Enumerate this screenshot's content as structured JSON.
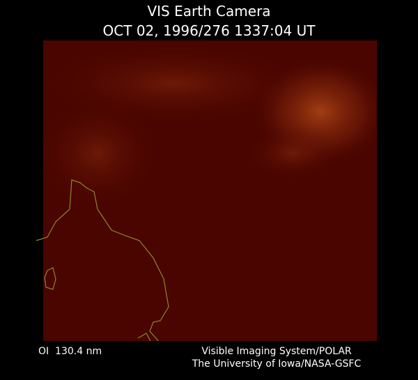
{
  "header": {
    "title": "VIS Earth Camera",
    "timestamp": "OCT 02, 1996/276 1337:04 UT"
  },
  "footer": {
    "wavelength": "OI  130.4 nm",
    "instrument": "Visible Imaging System/POLAR",
    "institution": "The University of Iowa/NASA-GSFC"
  }
}
